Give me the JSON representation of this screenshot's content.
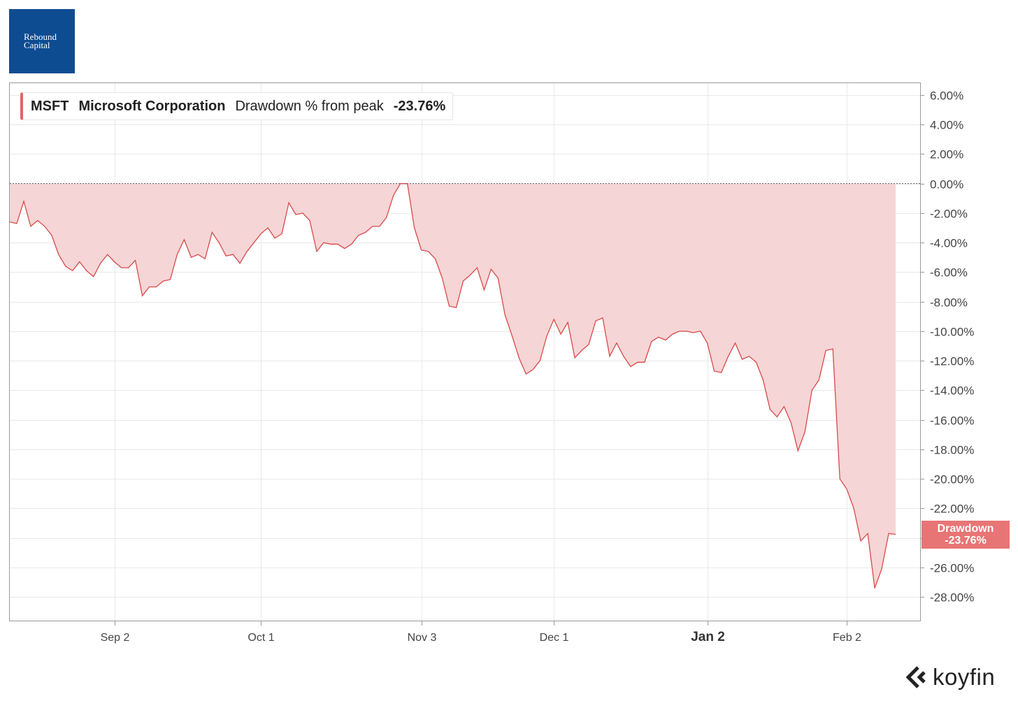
{
  "logo": {
    "line1": "Rebound",
    "line2": "Capital",
    "color": "#0e4c92"
  },
  "legend": {
    "ticker": "MSFT",
    "company": "Microsoft Corporation",
    "metric": "Drawdown % from peak",
    "value": "-23.76%"
  },
  "badge": {
    "label": "Drawdown",
    "value": "-23.76%"
  },
  "brand": {
    "name": "koyfin",
    "icon": "koyfin-chevron-icon"
  },
  "colors": {
    "line": "#d84a4a",
    "fill": "#f6d5d6",
    "badge": "#e87575"
  },
  "chart_data": {
    "type": "area",
    "title": "",
    "xlabel": "",
    "ylabel": "",
    "ylim": [
      -29.6,
      6.8
    ],
    "yticks": [
      6,
      4,
      2,
      0,
      -2,
      -4,
      -6,
      -8,
      -10,
      -12,
      -14,
      -16,
      -18,
      -20,
      -22,
      -24,
      -26,
      -28
    ],
    "ytick_labels": [
      "6.00%",
      "4.00%",
      "2.00%",
      "0.00%",
      "-2.00%",
      "-4.00%",
      "-6.00%",
      "-8.00%",
      "-10.00%",
      "-12.00%",
      "-14.00%",
      "-16.00%",
      "-18.00%",
      "-20.00%",
      "-22.00%",
      "-24.00%",
      "-26.00%",
      "-28.00%"
    ],
    "hidden_ytick_labels": [
      "-24.00%"
    ],
    "xticks": [
      {
        "label": "Sep 2",
        "index": 15,
        "bold": false
      },
      {
        "label": "Oct 1",
        "index": 36,
        "bold": false
      },
      {
        "label": "Nov 3",
        "index": 59,
        "bold": false
      },
      {
        "label": "Dec 1",
        "index": 78,
        "bold": false
      },
      {
        "label": "Jan 2",
        "index": 100,
        "bold": true
      },
      {
        "label": "Feb 2",
        "index": 120,
        "bold": false
      }
    ],
    "reference_line": 0,
    "grid": true,
    "series": [
      {
        "values": [
          -2.6,
          -2.7,
          -1.2,
          -2.9,
          -2.5,
          -2.9,
          -3.5,
          -4.8,
          -5.6,
          -5.9,
          -5.3,
          -5.9,
          -6.3,
          -5.4,
          -4.8,
          -5.3,
          -5.7,
          -5.7,
          -5.2,
          -7.6,
          -7.0,
          -7.0,
          -6.6,
          -6.5,
          -4.8,
          -3.8,
          -5.0,
          -4.8,
          -5.1,
          -3.3,
          -4.0,
          -4.9,
          -4.8,
          -5.4,
          -4.6,
          -4.0,
          -3.4,
          -3.0,
          -3.7,
          -3.4,
          -1.3,
          -2.1,
          -2.0,
          -2.5,
          -4.6,
          -4.0,
          -4.1,
          -4.1,
          -4.4,
          -4.1,
          -3.5,
          -3.3,
          -2.9,
          -2.9,
          -2.3,
          -0.8,
          0,
          0,
          -3.0,
          -4.5,
          -4.6,
          -5.1,
          -6.4,
          -8.3,
          -8.4,
          -6.6,
          -6.2,
          -5.7,
          -7.2,
          -5.8,
          -6.4,
          -8.9,
          -10.3,
          -11.8,
          -12.9,
          -12.6,
          -12.0,
          -10.3,
          -9.2,
          -10.2,
          -9.4,
          -11.8,
          -11.3,
          -10.9,
          -9.3,
          -9.1,
          -11.7,
          -10.8,
          -11.7,
          -12.4,
          -12.1,
          -12.1,
          -10.7,
          -10.4,
          -10.6,
          -10.2,
          -10.0,
          -10.0,
          -10.1,
          -10.0,
          -10.8,
          -12.7,
          -12.8,
          -11.7,
          -10.8,
          -11.9,
          -11.7,
          -12.1,
          -13.3,
          -15.3,
          -15.8,
          -15.1,
          -16.2,
          -18.1,
          -16.8,
          -14.0,
          -13.3,
          -11.3,
          -11.2,
          -20.0,
          -20.7,
          -22.0,
          -24.2,
          -23.7,
          -27.4,
          -26.1,
          -23.7,
          -23.76
        ]
      }
    ],
    "last_value": -23.76
  }
}
